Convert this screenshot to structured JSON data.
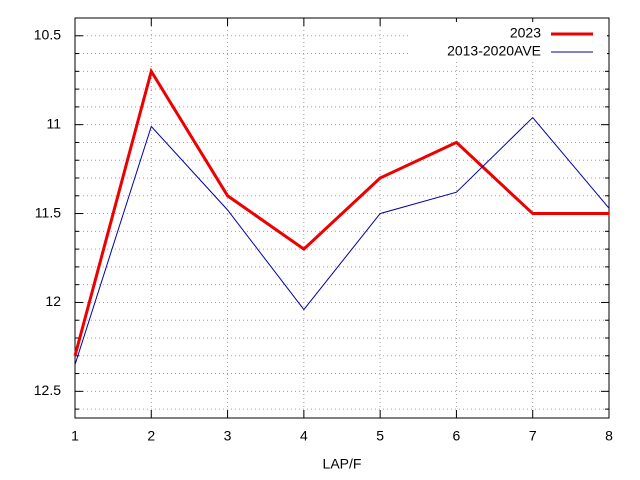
{
  "chart_data": {
    "type": "line",
    "xlabel": "LAP/F",
    "x": [
      1,
      2,
      3,
      4,
      5,
      6,
      7,
      8
    ],
    "series": [
      {
        "name": "2023",
        "color": "#ee0000",
        "width": 3,
        "values": [
          12.3,
          10.7,
          11.4,
          11.7,
          11.3,
          11.1,
          11.5,
          11.5
        ]
      },
      {
        "name": "2013-2020AVE",
        "color": "#0000aa",
        "width": 1,
        "values": [
          12.35,
          11.01,
          11.48,
          12.04,
          11.5,
          11.38,
          10.96,
          11.47
        ]
      }
    ],
    "xlim": [
      1,
      8
    ],
    "xticks": [
      1,
      2,
      3,
      4,
      5,
      6,
      7,
      8
    ],
    "ylim": [
      10.4,
      12.65
    ],
    "y_inverted": true,
    "yticks": [
      10.5,
      11,
      11.5,
      12,
      12.5
    ],
    "yminorticks": [
      10.6,
      10.7,
      10.8,
      10.9,
      11.1,
      11.2,
      11.3,
      11.4,
      11.6,
      11.7,
      11.8,
      11.9,
      12.1,
      12.2,
      12.3,
      12.4,
      12.6
    ],
    "grid": true,
    "legend": "top-right"
  }
}
